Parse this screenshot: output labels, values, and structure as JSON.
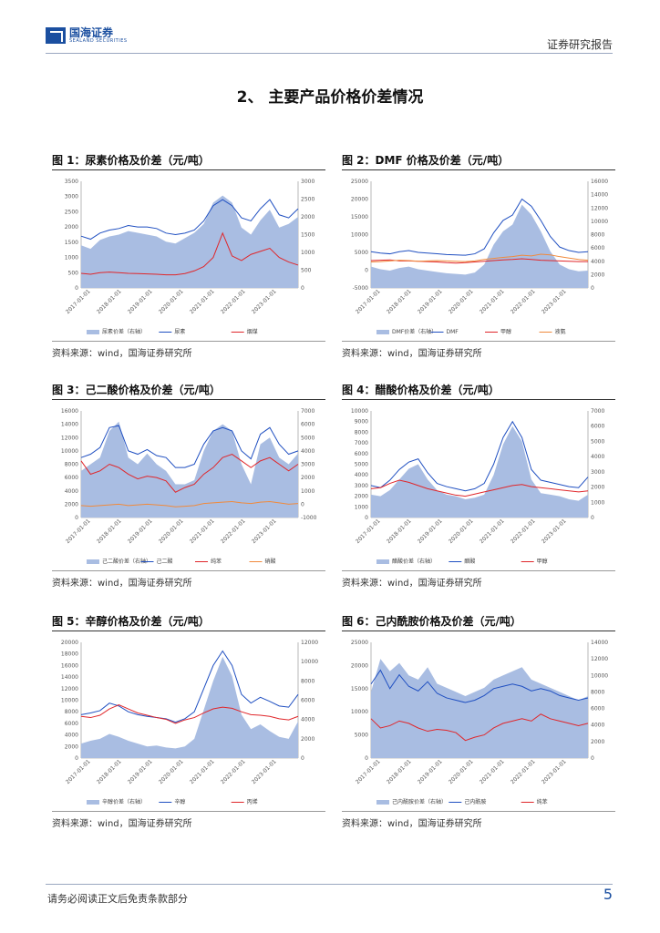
{
  "header": {
    "logo_cn": "国海证券",
    "logo_en": "SEALAND SECURITIES",
    "report_type": "证券研究报告"
  },
  "section_title": "2、 主要产品价格价差情况",
  "source_text": "资料来源：wind，国海证券研究所",
  "footer": {
    "disclaimer": "请务必阅读正文后免责条款部分",
    "page": "5"
  },
  "colors": {
    "area": "#a9bde2",
    "blue": "#1f4fc1",
    "red": "#e0262a",
    "orange": "#f08a3c",
    "brand": "#1b4fa0"
  },
  "chart_data": [
    {
      "id": "fig1",
      "type": "line",
      "title": "图 1：尿素价格及价差（元/吨）",
      "x_ticks": [
        "2017-01-01",
        "2018-01-01",
        "2019-01-01",
        "2020-01-01",
        "2021-01-01",
        "2022-01-01",
        "2023-01-01"
      ],
      "ylim_left": [
        0,
        3500
      ],
      "yticks_left": [
        0,
        500,
        1000,
        1500,
        2000,
        2500,
        3000,
        3500
      ],
      "ylim_right": [
        0,
        3000
      ],
      "yticks_right": [
        0,
        500,
        1000,
        1500,
        2000,
        2500,
        3000
      ],
      "series": [
        {
          "name": "尿素价差（右轴）",
          "kind": "area",
          "axis": "right",
          "values": [
            1200,
            1100,
            1350,
            1450,
            1500,
            1600,
            1550,
            1500,
            1450,
            1300,
            1250,
            1400,
            1550,
            1800,
            2400,
            2600,
            2400,
            1700,
            1500,
            1900,
            2200,
            1700,
            1800,
            2000
          ]
        },
        {
          "name": "尿素",
          "kind": "line",
          "axis": "left",
          "color": "blue",
          "values": [
            1700,
            1600,
            1800,
            1900,
            1950,
            2050,
            2000,
            2000,
            1950,
            1800,
            1750,
            1800,
            1900,
            2200,
            2700,
            2900,
            2700,
            2300,
            2200,
            2600,
            2900,
            2400,
            2300,
            2600
          ]
        },
        {
          "name": "烟煤",
          "kind": "line",
          "axis": "left",
          "color": "red",
          "values": [
            480,
            450,
            500,
            520,
            500,
            480,
            470,
            460,
            450,
            430,
            430,
            470,
            560,
            700,
            1000,
            1800,
            1050,
            900,
            1100,
            1200,
            1300,
            1000,
            850,
            750
          ]
        }
      ]
    },
    {
      "id": "fig2",
      "type": "line",
      "title": "图 2：DMF 价格及价差（元/吨）",
      "x_ticks": [
        "2017-01-01",
        "2018-01-01",
        "2019-01-01",
        "2020-01-01",
        "2021-01-01",
        "2022-01-01",
        "2023-01-01"
      ],
      "ylim_left": [
        -5000,
        25000
      ],
      "yticks_left": [
        -5000,
        0,
        5000,
        10000,
        15000,
        20000,
        25000
      ],
      "ylim_right": [
        0,
        16000
      ],
      "yticks_right": [
        0,
        2000,
        4000,
        6000,
        8000,
        10000,
        12000,
        14000,
        16000
      ],
      "series": [
        {
          "name": "DMF价差（右轴）",
          "kind": "area",
          "axis": "right",
          "values": [
            3200,
            2800,
            2600,
            3000,
            3200,
            2800,
            2600,
            2400,
            2200,
            2100,
            2000,
            2300,
            3500,
            6500,
            8500,
            9500,
            12500,
            11000,
            8500,
            5500,
            3500,
            2800,
            2500,
            2600
          ]
        },
        {
          "name": "DMF",
          "kind": "line",
          "axis": "left",
          "color": "blue",
          "values": [
            5200,
            4800,
            4600,
            5200,
            5500,
            5000,
            4800,
            4600,
            4400,
            4300,
            4200,
            4600,
            6000,
            10500,
            14000,
            15500,
            20000,
            18000,
            14000,
            9500,
            6500,
            5500,
            5000,
            5200
          ]
        },
        {
          "name": "甲醇",
          "kind": "line",
          "axis": "left",
          "color": "red",
          "values": [
            2700,
            2800,
            2900,
            2600,
            2600,
            2500,
            2400,
            2300,
            2100,
            2000,
            2100,
            2300,
            2500,
            2700,
            2900,
            3000,
            3200,
            3000,
            2800,
            2700,
            2600,
            2500,
            2400,
            2400
          ]
        },
        {
          "name": "液氨",
          "kind": "line",
          "axis": "left",
          "color": "orange",
          "values": [
            2300,
            2400,
            2600,
            2800,
            2700,
            2500,
            2600,
            2700,
            2600,
            2500,
            2400,
            2600,
            3000,
            3300,
            3600,
            3800,
            4200,
            4000,
            4500,
            4300,
            3800,
            3400,
            3000,
            2800
          ]
        }
      ]
    },
    {
      "id": "fig3",
      "type": "line",
      "title": "图 3：己二酸价格及价差（元/吨）",
      "x_ticks": [
        "2017-01-01",
        "2018-01-01",
        "2019-01-01",
        "2020-01-01",
        "2021-01-01",
        "2022-01-01",
        "2023-01-01"
      ],
      "ylim_left": [
        0,
        16000
      ],
      "yticks_left": [
        0,
        2000,
        4000,
        6000,
        8000,
        10000,
        12000,
        14000,
        16000
      ],
      "ylim_right": [
        -1000,
        7000
      ],
      "yticks_right": [
        -1000,
        0,
        1000,
        2000,
        3000,
        4000,
        5000,
        6000,
        7000
      ],
      "series": [
        {
          "name": "己二酸价差（右轴）",
          "kind": "area",
          "axis": "right",
          "values": [
            2500,
            3000,
            3500,
            5500,
            6200,
            3500,
            3000,
            3800,
            3000,
            2500,
            1500,
            1500,
            1800,
            4000,
            5500,
            6000,
            5500,
            3000,
            1500,
            4500,
            5000,
            3500,
            3000,
            3800
          ]
        },
        {
          "name": "己二酸",
          "kind": "line",
          "axis": "left",
          "color": "blue",
          "values": [
            9000,
            9500,
            10500,
            13500,
            13800,
            10000,
            9500,
            10200,
            9300,
            9000,
            7500,
            7500,
            8000,
            11000,
            13000,
            13500,
            13000,
            10000,
            8800,
            12500,
            13500,
            11000,
            9500,
            10000
          ]
        },
        {
          "name": "纯苯",
          "kind": "line",
          "axis": "left",
          "color": "red",
          "values": [
            8500,
            6500,
            7000,
            8000,
            7500,
            6500,
            5800,
            6200,
            6000,
            5500,
            3800,
            4500,
            5000,
            6500,
            7500,
            9000,
            9500,
            8500,
            7500,
            8500,
            9000,
            8000,
            7000,
            8000
          ]
        },
        {
          "name": "硝酸",
          "kind": "line",
          "axis": "left",
          "color": "orange",
          "values": [
            1800,
            1700,
            1800,
            1900,
            2000,
            1800,
            1900,
            2000,
            1900,
            1800,
            1600,
            1700,
            1800,
            2100,
            2200,
            2300,
            2400,
            2200,
            2100,
            2300,
            2400,
            2200,
            2000,
            2100
          ]
        }
      ]
    },
    {
      "id": "fig4",
      "type": "line",
      "title": "图 4：醋酸价格及价差（元/吨）",
      "x_ticks": [
        "2017-01-01",
        "2018-01-01",
        "2019-01-01",
        "2020-01-01",
        "2021-01-01",
        "2022-01-01",
        "2023-01-01"
      ],
      "ylim_left": [
        0,
        10000
      ],
      "yticks_left": [
        0,
        1000,
        2000,
        3000,
        4000,
        5000,
        6000,
        7000,
        8000,
        9000,
        10000
      ],
      "ylim_right": [
        0,
        7000
      ],
      "yticks_right": [
        0,
        1000,
        2000,
        3000,
        4000,
        5000,
        6000,
        7000
      ],
      "series": [
        {
          "name": "醋酸价差（右轴）",
          "kind": "area",
          "axis": "right",
          "values": [
            1500,
            1400,
            1800,
            2500,
            3200,
            3500,
            2500,
            1800,
            1500,
            1400,
            1200,
            1300,
            1500,
            2800,
            4800,
            6000,
            5000,
            2500,
            1600,
            1500,
            1400,
            1200,
            1100,
            1500
          ]
        },
        {
          "name": "醋酸",
          "kind": "line",
          "axis": "left",
          "color": "blue",
          "values": [
            3000,
            2800,
            3500,
            4500,
            5200,
            5500,
            4200,
            3200,
            2900,
            2700,
            2500,
            2700,
            3200,
            5000,
            7500,
            9000,
            7500,
            4500,
            3500,
            3300,
            3100,
            2900,
            2800,
            3800
          ]
        },
        {
          "name": "甲醇",
          "kind": "line",
          "axis": "left",
          "color": "red",
          "values": [
            2700,
            2800,
            3200,
            3500,
            3300,
            3000,
            2700,
            2500,
            2300,
            2100,
            2000,
            2200,
            2400,
            2600,
            2800,
            3000,
            3100,
            2900,
            2800,
            2700,
            2600,
            2500,
            2400,
            2500
          ]
        }
      ]
    },
    {
      "id": "fig5",
      "type": "line",
      "title": "图 5：辛醇价格及价差（元/吨）",
      "x_ticks": [
        "2017-01-01",
        "2018-01-01",
        "2019-01-01",
        "2020-01-01",
        "2021-01-01",
        "2022-01-01",
        "2023-01-01"
      ],
      "ylim_left": [
        0,
        20000
      ],
      "yticks_left": [
        0,
        2000,
        4000,
        6000,
        8000,
        10000,
        12000,
        14000,
        16000,
        18000,
        20000
      ],
      "ylim_right": [
        0,
        12000
      ],
      "yticks_right": [
        0,
        2000,
        4000,
        6000,
        8000,
        10000,
        12000
      ],
      "series": [
        {
          "name": "辛醇价差（右轴）",
          "kind": "area",
          "axis": "right",
          "values": [
            1500,
            1800,
            2000,
            2500,
            2200,
            1800,
            1500,
            1200,
            1300,
            1100,
            1000,
            1200,
            2000,
            5000,
            8000,
            10500,
            8500,
            4500,
            3000,
            3500,
            2800,
            2200,
            2000,
            3800
          ]
        },
        {
          "name": "辛醇",
          "kind": "line",
          "axis": "left",
          "color": "blue",
          "values": [
            7500,
            7800,
            8200,
            9500,
            9000,
            8000,
            7500,
            7200,
            7000,
            6800,
            6200,
            6800,
            8000,
            12000,
            16000,
            18500,
            16000,
            11000,
            9500,
            10500,
            9800,
            9000,
            8800,
            11000
          ]
        },
        {
          "name": "丙烯",
          "kind": "line",
          "axis": "left",
          "color": "red",
          "values": [
            7200,
            7000,
            7400,
            8500,
            9200,
            8500,
            7800,
            7400,
            7000,
            6700,
            6000,
            6600,
            7000,
            7800,
            8500,
            8800,
            8600,
            8000,
            7500,
            7400,
            7200,
            6800,
            6600,
            7200
          ]
        }
      ]
    },
    {
      "id": "fig6",
      "type": "line",
      "title": "图 6：己内酰胺价格及价差（元/吨）",
      "x_ticks": [
        "2017-01-01",
        "2018-01-01",
        "2019-01-01",
        "2020-01-01",
        "2021-01-01",
        "2022-01-01",
        "2023-01-01"
      ],
      "ylim_left": [
        0,
        25000
      ],
      "yticks_left": [
        0,
        5000,
        10000,
        15000,
        20000,
        25000
      ],
      "ylim_right": [
        0,
        14000
      ],
      "yticks_right": [
        0,
        2000,
        4000,
        6000,
        8000,
        10000,
        12000,
        14000
      ],
      "series": [
        {
          "name": "己内酰胺价差（右轴）",
          "kind": "area",
          "axis": "right",
          "values": [
            8000,
            12000,
            10500,
            11500,
            10000,
            9500,
            11000,
            9000,
            8500,
            8000,
            7500,
            8000,
            8500,
            9500,
            10000,
            10500,
            11000,
            9500,
            9000,
            8500,
            8000,
            7500,
            7000,
            7500
          ]
        },
        {
          "name": "己内酰胺",
          "kind": "line",
          "axis": "left",
          "color": "blue",
          "values": [
            16000,
            19000,
            15000,
            18000,
            15500,
            14500,
            16500,
            14000,
            13000,
            12500,
            12000,
            12500,
            13500,
            15000,
            15500,
            16000,
            15500,
            14500,
            15000,
            14500,
            13500,
            13000,
            12500,
            13000
          ]
        },
        {
          "name": "纯苯",
          "kind": "line",
          "axis": "left",
          "color": "red",
          "values": [
            8500,
            6500,
            7000,
            8000,
            7500,
            6500,
            5800,
            6200,
            6000,
            5500,
            3800,
            4500,
            5000,
            6500,
            7500,
            8000,
            8500,
            8000,
            9500,
            8500,
            8000,
            7500,
            7000,
            7500
          ]
        }
      ]
    }
  ]
}
